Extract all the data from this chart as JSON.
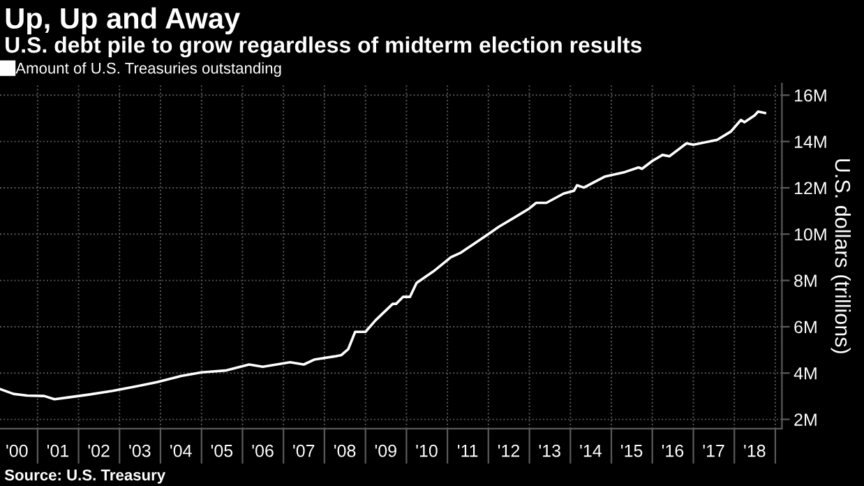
{
  "chart_data": {
    "type": "line",
    "title": "Up, Up and Away",
    "subtitle": "U.S. debt pile to grow regardless of midterm election results",
    "ylabel": "U.S. dollars (trillions)",
    "annotations": [
      "Source: U.S. Treasury"
    ],
    "x": [
      "2000-02",
      "2000-06",
      "2000-10",
      "2001-03",
      "2001-06",
      "2001-10",
      "2002-04",
      "2002-11",
      "2003-06",
      "2003-12",
      "2004-07",
      "2005-01",
      "2005-08",
      "2006-03",
      "2006-07",
      "2007-03",
      "2007-07",
      "2007-10",
      "2008-04",
      "2008-06",
      "2008-08",
      "2008-10",
      "2009-01",
      "2009-04",
      "2009-09",
      "2009-10",
      "2009-12",
      "2010-02",
      "2010-04",
      "2010-09",
      "2011-02",
      "2011-05",
      "2011-09",
      "2012-01",
      "2012-04",
      "2012-09",
      "2013-01",
      "2013-03",
      "2013-06",
      "2013-11",
      "2014-02",
      "2014-03",
      "2014-05",
      "2014-11",
      "2015-05",
      "2015-09",
      "2015-10",
      "2016-01",
      "2016-04",
      "2016-06",
      "2016-11",
      "2017-01",
      "2017-08",
      "2017-12",
      "2018-03",
      "2018-04",
      "2018-07",
      "2018-08",
      "2018-10"
    ],
    "series": [
      {
        "name": "Amount of U.S. Treasuries outstanding",
        "color": "#ffffff",
        "values": [
          3.31,
          3.1,
          3.03,
          3.01,
          2.87,
          2.95,
          3.07,
          3.23,
          3.43,
          3.61,
          3.87,
          4.03,
          4.11,
          4.37,
          4.27,
          4.47,
          4.37,
          4.58,
          4.72,
          4.78,
          5.04,
          5.78,
          5.78,
          6.28,
          6.99,
          6.99,
          7.29,
          7.29,
          7.89,
          8.4,
          9.0,
          9.2,
          9.6,
          10.0,
          10.31,
          10.75,
          11.11,
          11.35,
          11.35,
          11.75,
          11.87,
          12.11,
          12.01,
          12.48,
          12.68,
          12.88,
          12.82,
          13.16,
          13.42,
          13.36,
          13.92,
          13.86,
          14.07,
          14.43,
          14.93,
          14.83,
          15.13,
          15.29,
          15.23
        ]
      }
    ],
    "xlim": [
      "2000-02",
      "2019-03"
    ],
    "xticks": [
      {
        "value": "2000-07",
        "label": "'00"
      },
      {
        "value": "2001-07",
        "label": "'01"
      },
      {
        "value": "2002-07",
        "label": "'02"
      },
      {
        "value": "2003-07",
        "label": "'03"
      },
      {
        "value": "2004-07",
        "label": "'04"
      },
      {
        "value": "2005-07",
        "label": "'05"
      },
      {
        "value": "2006-07",
        "label": "'06"
      },
      {
        "value": "2007-07",
        "label": "'07"
      },
      {
        "value": "2008-07",
        "label": "'08"
      },
      {
        "value": "2009-07",
        "label": "'09"
      },
      {
        "value": "2010-07",
        "label": "'10"
      },
      {
        "value": "2011-07",
        "label": "'11"
      },
      {
        "value": "2012-07",
        "label": "'12"
      },
      {
        "value": "2013-07",
        "label": "'13"
      },
      {
        "value": "2014-07",
        "label": "'14"
      },
      {
        "value": "2015-07",
        "label": "'15"
      },
      {
        "value": "2016-07",
        "label": "'16"
      },
      {
        "value": "2017-07",
        "label": "'17"
      },
      {
        "value": "2018-07",
        "label": "'18"
      },
      {
        "value": "2001-01",
        "label": null
      },
      {
        "value": "2002-01",
        "label": null
      },
      {
        "value": "2003-01",
        "label": null
      },
      {
        "value": "2004-01",
        "label": null
      },
      {
        "value": "2005-01",
        "label": null
      },
      {
        "value": "2006-01",
        "label": null
      },
      {
        "value": "2007-01",
        "label": null
      },
      {
        "value": "2008-01",
        "label": null
      },
      {
        "value": "2009-01",
        "label": null
      },
      {
        "value": "2010-01",
        "label": null
      },
      {
        "value": "2011-01",
        "label": null
      },
      {
        "value": "2012-01",
        "label": null
      },
      {
        "value": "2013-01",
        "label": null
      },
      {
        "value": "2014-01",
        "label": null
      },
      {
        "value": "2015-01",
        "label": null
      },
      {
        "value": "2016-01",
        "label": null
      },
      {
        "value": "2017-01",
        "label": null
      },
      {
        "value": "2018-01",
        "label": null
      },
      {
        "value": "2019-01",
        "label": null
      }
    ],
    "ylim": [
      1.6,
      16.5
    ],
    "yticks": [
      {
        "value": 2,
        "label": "2M"
      },
      {
        "value": 4,
        "label": "4M"
      },
      {
        "value": 6,
        "label": "6M"
      },
      {
        "value": 8,
        "label": "8M"
      },
      {
        "value": 10,
        "label": "10M"
      },
      {
        "value": 12,
        "label": "12M"
      },
      {
        "value": 14,
        "label": "14M"
      },
      {
        "value": 16,
        "label": "16M"
      }
    ],
    "grid": true,
    "legend": "top left",
    "marker": "none",
    "line_style": "solid"
  }
}
